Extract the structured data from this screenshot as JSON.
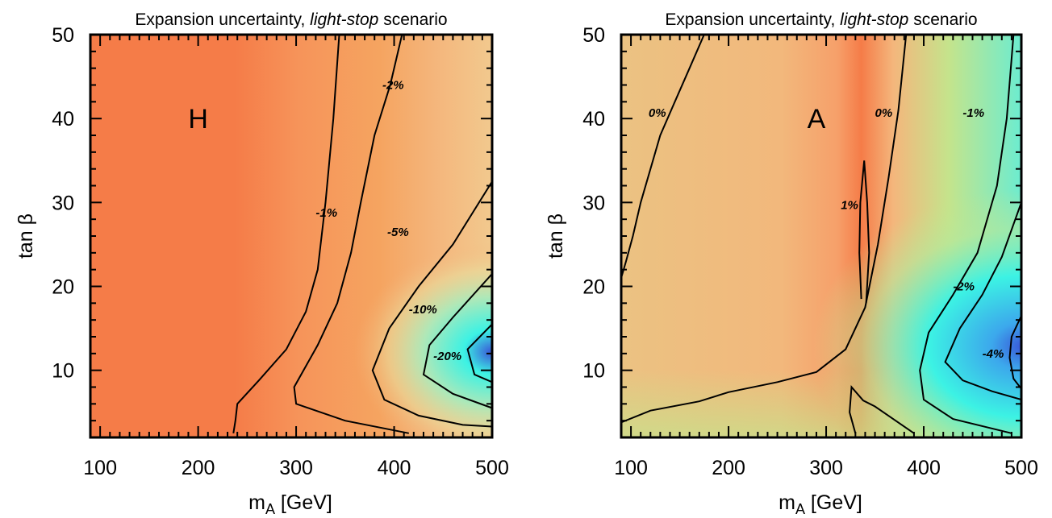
{
  "chart_data": [
    {
      "type": "heatmap",
      "title_prefix": "Expansion uncertainty, ",
      "title_em": "light-stop",
      "title_suffix": " scenario",
      "xlabel": "m",
      "xlabel_sub": "A",
      "xlabel_unit": " [GeV]",
      "ylabel": "tan β",
      "xlim": [
        90,
        500
      ],
      "ylim": [
        2,
        50
      ],
      "xticks": [
        100,
        200,
        300,
        400,
        500
      ],
      "yticks": [
        10,
        20,
        30,
        40,
        50
      ],
      "grid": false,
      "colormap": "rainbow: blue (most negative) through cyan, green, yellow to orange/red (least negative)",
      "colors": {
        "blue": "#3a57d8",
        "cyan": "#3cf2e4",
        "green": "#c4e48c",
        "tan": "#f4b67c",
        "orange": "#f57c48"
      },
      "higgs": "H",
      "higgs_pos": [
        200,
        40
      ],
      "contours": [
        {
          "level": "-1%",
          "label_pos": [
            320,
            28.3
          ],
          "points": [
            [
              236,
              2.5
            ],
            [
              238,
              4
            ],
            [
              240,
              6
            ],
            [
              262,
              8.8
            ],
            [
              290,
              12.5
            ],
            [
              310,
              17
            ],
            [
              322,
              22
            ],
            [
              330,
              30
            ],
            [
              338,
              40
            ],
            [
              344,
              50
            ]
          ]
        },
        {
          "level": "-2%",
          "label_pos": [
            388,
            43.5
          ],
          "points": [
            [
              415,
              2.5
            ],
            [
              350,
              4
            ],
            [
              300,
              6
            ],
            [
              298,
              8
            ],
            [
              322,
              13
            ],
            [
              342,
              18
            ],
            [
              356,
              24
            ],
            [
              366,
              30
            ],
            [
              380,
              38
            ],
            [
              396,
              44
            ],
            [
              408,
              50
            ]
          ]
        },
        {
          "level": "-5%",
          "label_pos": [
            393,
            26
          ],
          "points": [
            [
              500,
              3.3
            ],
            [
              470,
              3.5
            ],
            [
              425,
              4.6
            ],
            [
              390,
              6.5
            ],
            [
              378,
              10
            ],
            [
              395,
              15
            ],
            [
              425,
              20
            ],
            [
              460,
              25
            ],
            [
              500,
              32.5
            ]
          ]
        },
        {
          "level": "-10%",
          "label_pos": [
            415,
            16.8
          ],
          "points": [
            [
              500,
              5.5
            ],
            [
              460,
              7.2
            ],
            [
              430,
              9.5
            ],
            [
              436,
              13
            ],
            [
              460,
              16.3
            ],
            [
              500,
              21.5
            ]
          ]
        },
        {
          "level": "-20%",
          "label_pos": [
            440,
            11.2
          ],
          "points": [
            [
              500,
              8.6
            ],
            [
              482,
              9.5
            ],
            [
              475,
              12.5
            ],
            [
              500,
              15.5
            ]
          ]
        }
      ]
    },
    {
      "type": "heatmap",
      "title_prefix": "Expansion uncertainty, ",
      "title_em": "light-stop",
      "title_suffix": " scenario",
      "xlabel": "m",
      "xlabel_sub": "A",
      "xlabel_unit": " [GeV]",
      "ylabel": "tan β",
      "xlim": [
        90,
        500
      ],
      "ylim": [
        2,
        50
      ],
      "xticks": [
        100,
        200,
        300,
        400,
        500
      ],
      "yticks": [
        10,
        20,
        30,
        40,
        50
      ],
      "grid": false,
      "colormap": "rainbow: blue (most negative) through cyan, green, yellow to orange/red (most positive)",
      "colors": {
        "blue": "#3a57d8",
        "cyan": "#3cf2e4",
        "green": "#c4e48c",
        "tan": "#f4b67c",
        "orange": "#f57c48"
      },
      "higgs": "A",
      "higgs_pos": [
        290,
        40
      ],
      "contours": [
        {
          "level": "0%",
          "label_pos": [
            118,
            40.2
          ],
          "points": [
            [
              90,
              21
            ],
            [
              95,
              23
            ],
            [
              102,
              26
            ],
            [
              110,
              30
            ],
            [
              120,
              34
            ],
            [
              130,
              38
            ],
            [
              145,
              42
            ],
            [
              160,
              46
            ],
            [
              175,
              50
            ]
          ]
        },
        {
          "level": "0%",
          "label_pos": [
            350,
            40.2
          ],
          "points": [
            [
              90,
              3.8
            ],
            [
              120,
              5.2
            ],
            [
              170,
              6.3
            ],
            [
              200,
              7.4
            ],
            [
              250,
              8.6
            ],
            [
              290,
              9.8
            ],
            [
              320,
              12.5
            ],
            [
              340,
              17.5
            ],
            [
              353,
              25
            ],
            [
              364,
              33
            ],
            [
              374,
              41
            ],
            [
              382,
              50
            ]
          ]
        },
        {
          "level": "0%",
          "label_pos": null,
          "points": [
            [
              330,
              2.5
            ],
            [
              324,
              5
            ],
            [
              326,
              8
            ],
            [
              338,
              6.4
            ],
            [
              350,
              5.7
            ],
            [
              390,
              2.5
            ]
          ]
        },
        {
          "level": "1%",
          "label_pos": [
            315,
            29.2
          ],
          "points": [
            [
              336,
              18.5
            ],
            [
              334,
              24
            ],
            [
              335,
              30
            ],
            [
              339,
              35
            ],
            [
              342,
              30
            ],
            [
              344,
              24
            ],
            [
              341,
              18
            ]
          ]
        },
        {
          "level": "-1%",
          "label_pos": [
            440,
            40.2
          ],
          "points": [
            [
              490,
              2.5
            ],
            [
              430,
              4.2
            ],
            [
              400,
              6.5
            ],
            [
              396,
              10
            ],
            [
              405,
              14.5
            ],
            [
              430,
              19
            ],
            [
              455,
              24
            ],
            [
              475,
              32
            ],
            [
              485,
              40
            ],
            [
              492,
              50
            ]
          ]
        },
        {
          "level": "-2%",
          "label_pos": [
            430,
            19.5
          ],
          "points": [
            [
              500,
              6.5
            ],
            [
              470,
              7.5
            ],
            [
              440,
              8.8
            ],
            [
              422,
              11
            ],
            [
              437,
              15
            ],
            [
              460,
              19
            ],
            [
              480,
              23.5
            ],
            [
              500,
              30
            ]
          ]
        },
        {
          "level": "-4%",
          "label_pos": [
            460,
            11.5
          ],
          "points": [
            [
              500,
              7.8
            ],
            [
              492,
              9
            ],
            [
              488,
              11.5
            ],
            [
              490,
              14
            ],
            [
              500,
              16.5
            ]
          ]
        }
      ]
    }
  ]
}
